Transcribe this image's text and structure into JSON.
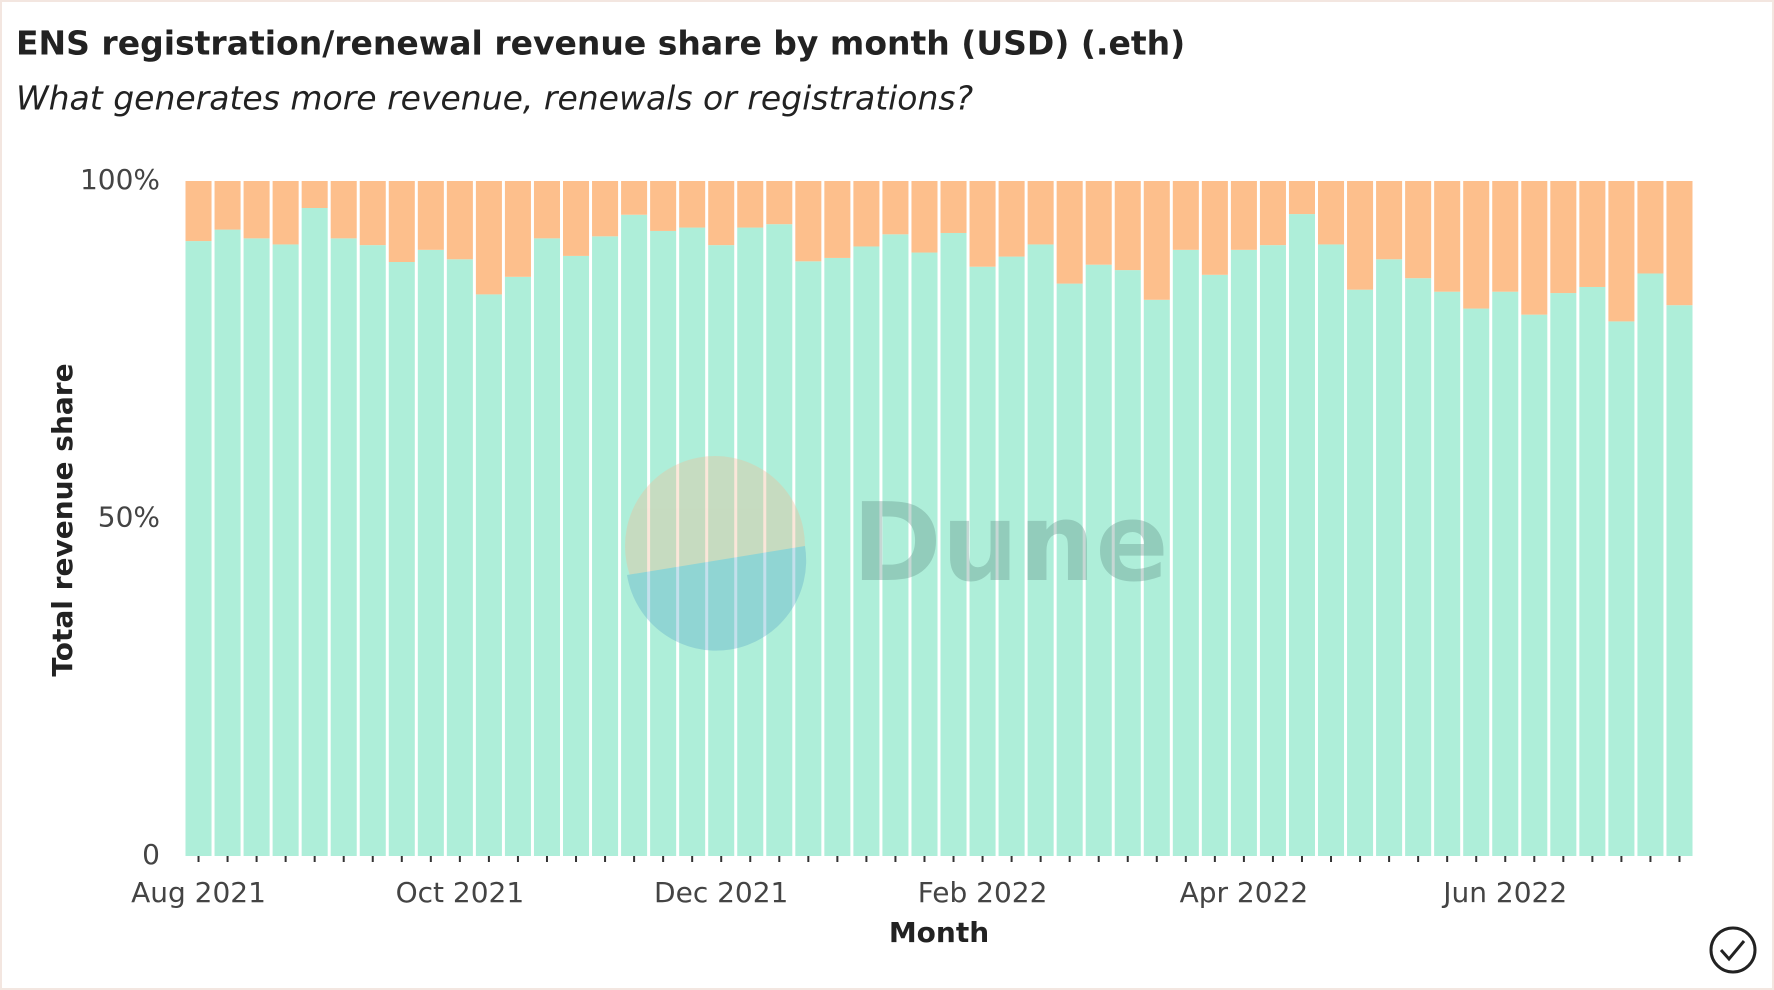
{
  "chart_data": {
    "type": "stacked_bar",
    "title": "ENS registration/renewal revenue share by month (USD) (.eth)",
    "subtitle": "What generates more revenue, renewals or registrations?",
    "x_label": "Month",
    "y_label": "Total revenue share",
    "watermark": "Dune",
    "categories": [
      "Aug 2021",
      null,
      null,
      null,
      null,
      null,
      null,
      null,
      null,
      "Oct 2021",
      null,
      null,
      null,
      null,
      null,
      null,
      null,
      null,
      "Dec 2021",
      null,
      null,
      null,
      null,
      null,
      null,
      null,
      null,
      "Feb 2022",
      null,
      null,
      null,
      null,
      null,
      null,
      null,
      null,
      "Apr 2022",
      null,
      null,
      null,
      null,
      null,
      null,
      null,
      null,
      "Jun 2022",
      null,
      null,
      null,
      null,
      null,
      null
    ],
    "series": [
      {
        "color": "#aeeed9",
        "values": [
          91.1,
          92.8,
          91.5,
          90.6,
          96.0,
          91.5,
          90.5,
          88.0,
          89.8,
          88.4,
          83.2,
          85.8,
          91.5,
          88.9,
          91.8,
          95.0,
          92.6,
          93.1,
          90.5,
          93.1,
          93.6,
          88.1,
          88.6,
          90.3,
          92.1,
          89.4,
          92.3,
          87.3,
          88.8,
          90.6,
          84.8,
          87.6,
          86.8,
          82.4,
          89.8,
          86.1,
          89.8,
          90.5,
          95.1,
          90.6,
          83.9,
          88.4,
          85.6,
          83.6,
          81.1,
          83.6,
          80.2,
          83.4,
          84.3,
          79.2,
          86.3,
          81.6
        ]
      },
      {
        "color": "#fdbf8c",
        "values": [
          8.9,
          7.2,
          8.5,
          9.4,
          4.0,
          8.5,
          9.5,
          12.0,
          10.2,
          11.6,
          16.8,
          14.2,
          8.5,
          11.1,
          8.2,
          5.0,
          7.4,
          6.9,
          9.5,
          6.9,
          6.4,
          11.9,
          11.4,
          9.7,
          7.9,
          10.6,
          7.7,
          12.7,
          11.2,
          9.4,
          15.2,
          12.4,
          13.2,
          17.6,
          10.2,
          13.9,
          10.2,
          9.5,
          4.9,
          9.4,
          16.1,
          11.6,
          14.4,
          16.4,
          18.9,
          16.4,
          19.8,
          16.6,
          15.7,
          20.8,
          13.7,
          18.4
        ]
      }
    ],
    "ylim": [
      0,
      100
    ],
    "yticks": [
      0,
      {
        "value": 50,
        "label": "50%"
      },
      {
        "value": 100,
        "label": "100%"
      }
    ]
  }
}
